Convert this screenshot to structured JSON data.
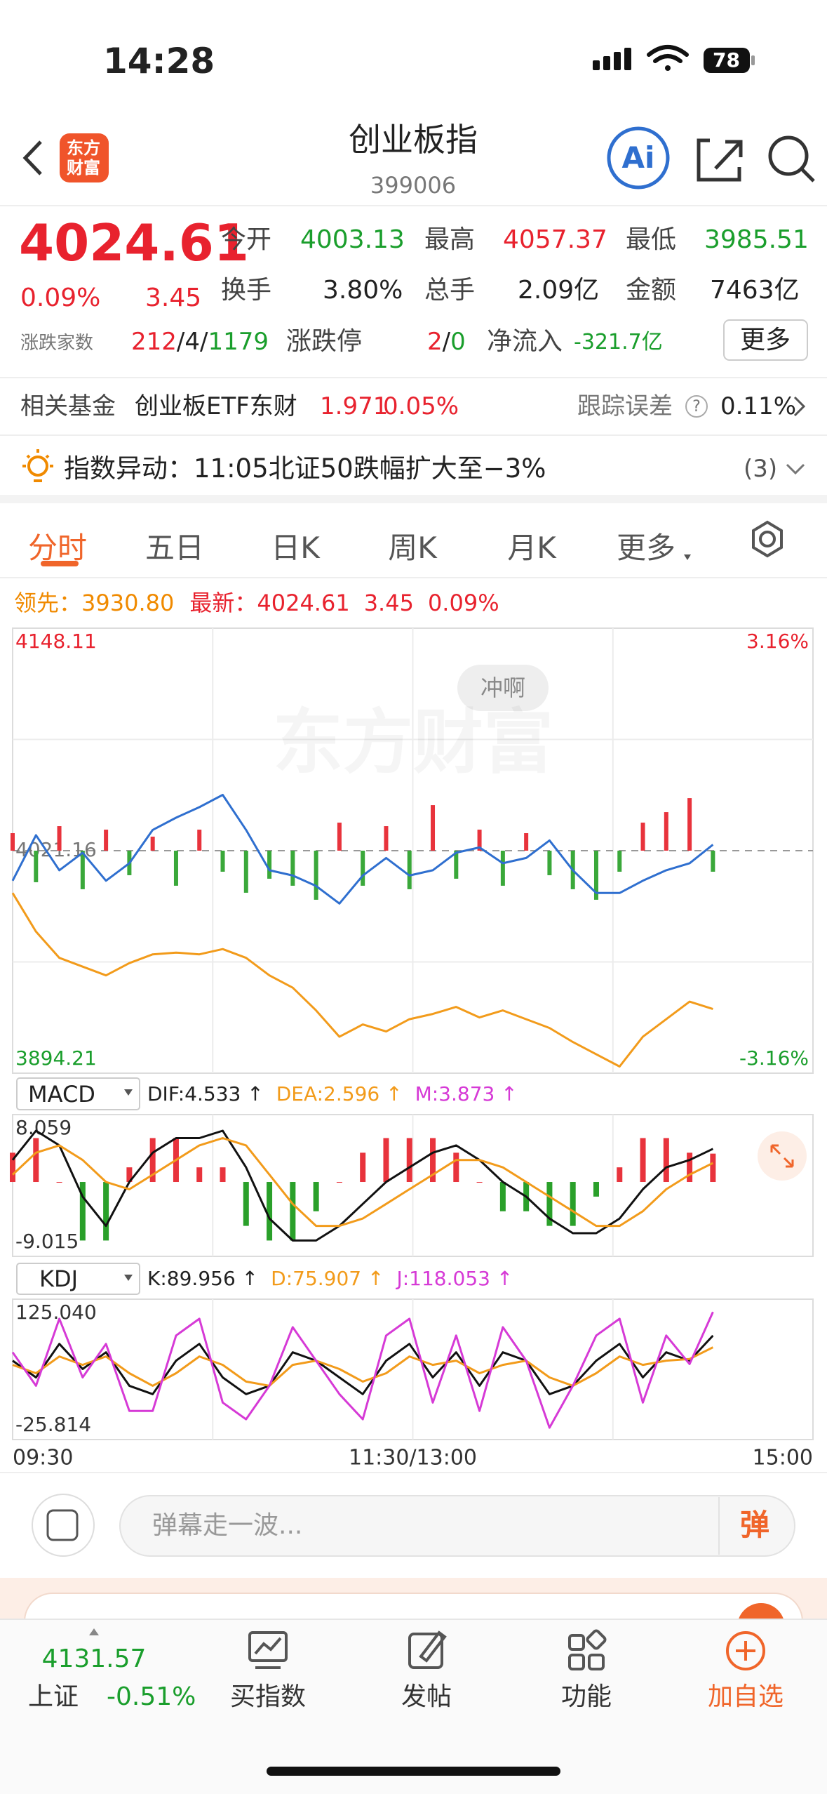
{
  "status_bar": {
    "time": "14:28",
    "battery": "78"
  },
  "header": {
    "title": "创业板指",
    "code": "399006",
    "logo_line1": "东方",
    "logo_line2": "财富",
    "ai": "Ai"
  },
  "quote": {
    "price": "4024.61",
    "change_pct": "0.09%",
    "change": "3.45",
    "stats": [
      {
        "label": "今开",
        "value": "4003.13"
      },
      {
        "label": "最高",
        "value": "4057.37"
      },
      {
        "label": "最低",
        "value": "3985.51"
      },
      {
        "label": "换手",
        "value": "3.80%"
      },
      {
        "label": "总手",
        "value": "2.09亿"
      },
      {
        "label": "金额",
        "value": "7463亿"
      }
    ],
    "breadth_label": "涨跌家数",
    "breadth": [
      "212",
      "/",
      "4",
      "/",
      "1179"
    ],
    "limit_label": "涨跌停",
    "limit": [
      "2",
      "/",
      "0"
    ],
    "netflow_label": "净流入",
    "netflow": "-321.7亿",
    "more": "更多"
  },
  "fund": {
    "label": "相关基金",
    "name": "创业板ETF东财",
    "price": "1.971",
    "change": "0.05%",
    "tracking_label": "跟踪误差",
    "help": "?",
    "tracking": "0.11%"
  },
  "alert": {
    "text": "指数异动：11:05北证50跌幅扩大至−3%",
    "count": "(3)"
  },
  "tabs": [
    "分时",
    "五日",
    "日K",
    "周K",
    "月K",
    "更多"
  ],
  "intraday": {
    "lead_label": "领先：",
    "lead": "3930.80",
    "latest_label": "最新：",
    "latest": "4024.61",
    "latest_change": "3.45",
    "latest_pct": "0.09%",
    "watermark": "东方财富",
    "bubble": "冲啊",
    "chart": {
      "type": "line",
      "x": [
        0,
        7,
        14,
        21,
        28,
        35,
        42,
        49,
        56,
        63,
        70,
        77,
        84,
        91,
        98,
        105,
        112,
        119,
        126,
        133,
        140,
        147,
        154,
        161,
        168,
        175,
        182,
        189,
        196,
        203,
        210
      ],
      "xlim": [
        0,
        240
      ],
      "xticks": [
        {
          "value": 0,
          "label": "09:30"
        },
        {
          "value": 120,
          "label": "11:30/13:00"
        },
        {
          "value": 240,
          "label": "15:00"
        }
      ],
      "ylim": [
        3894.21,
        4148.11
      ],
      "yticks": [
        3894.21,
        4021.16,
        4148.11
      ],
      "y2lim": [
        -3.16,
        3.16
      ],
      "y2ticks": [
        {
          "value": -3.16,
          "label": "-3.16%"
        },
        {
          "value": 3.16,
          "label": "3.16%"
        }
      ],
      "series": [
        {
          "color": "#2f6fcf",
          "values": [
            4004,
            4030,
            4010,
            4020,
            4004,
            4014,
            4033,
            4040,
            4046,
            4053,
            4033,
            4010,
            4007,
            4001,
            3991,
            4007,
            4017,
            4007,
            4010,
            4020,
            4023,
            4014,
            4017,
            4027,
            4010,
            3997,
            3997,
            4004,
            4010,
            4014,
            4024.61
          ]
        },
        {
          "color": "#f29b1b",
          "values": [
            3997,
            3975,
            3960,
            3955,
            3950,
            3957,
            3962,
            3963,
            3962,
            3965,
            3960,
            3950,
            3943,
            3930,
            3915,
            3922,
            3918,
            3925,
            3928,
            3932,
            3926,
            3930,
            3925,
            3920,
            3912,
            3905,
            3898,
            3915,
            3925,
            3935,
            3930.8
          ]
        }
      ],
      "bars": {
        "up_color": "#e8333c",
        "down_color": "#3aa83a",
        "values": [
          10,
          -18,
          14,
          -22,
          12,
          -14,
          8,
          -20,
          12,
          -12,
          -24,
          -16,
          -20,
          -28,
          16,
          -20,
          14,
          -22,
          26,
          -16,
          12,
          -20,
          10,
          -14,
          -22,
          -28,
          -12,
          16,
          22,
          30,
          -12
        ]
      }
    }
  },
  "macd": {
    "selector": "MACD",
    "indicators": [
      {
        "text": "DIF:4.533 ↑",
        "color": "#222222"
      },
      {
        "text": "DEA:2.596 ↑",
        "color": "#f29b1b"
      },
      {
        "text": "M:3.873 ↑",
        "color": "#d63ad6"
      }
    ],
    "chart": {
      "type": "line",
      "ylim": [
        -9.015,
        8.059
      ],
      "yticks": [
        -9.015,
        8.059
      ],
      "series": [
        {
          "color": "#111111",
          "values": [
            3,
            7,
            5,
            -2,
            -6,
            0,
            4,
            6,
            6,
            7,
            2,
            -5,
            -8,
            -8,
            -6,
            -3,
            0,
            2,
            4,
            5,
            3,
            0,
            -2,
            -5,
            -7,
            -7,
            -5,
            -1,
            2,
            3,
            4.533
          ]
        },
        {
          "color": "#f29b1b",
          "values": [
            1,
            4,
            5,
            3,
            0,
            -1,
            1,
            3,
            5,
            6,
            5,
            1,
            -3,
            -6,
            -6,
            -5,
            -3,
            -1,
            1,
            3,
            3,
            2,
            0,
            -2,
            -4,
            -6,
            -6,
            -4,
            -1,
            1,
            2.596
          ]
        }
      ],
      "bars": {
        "up_color": "#e8333c",
        "down_color": "#2aa02a",
        "values": [
          4,
          6,
          0,
          -8,
          -8,
          2,
          6,
          6,
          2,
          2,
          -6,
          -8,
          -8,
          -4,
          0,
          4,
          6,
          6,
          6,
          4,
          0,
          -4,
          -4,
          -6,
          -6,
          -2,
          2,
          6,
          6,
          4,
          3.873
        ]
      }
    }
  },
  "kdj": {
    "selector": "KDJ",
    "indicators": [
      {
        "text": "K:89.956 ↑",
        "color": "#222222"
      },
      {
        "text": "D:75.907 ↑",
        "color": "#f29b1b"
      },
      {
        "text": "J:118.053 ↑",
        "color": "#d63ad6"
      }
    ],
    "chart": {
      "type": "line",
      "ylim": [
        -25.814,
        125.04
      ],
      "yticks": [
        -25.814,
        {
          "value": 125.04,
          "label": "125.040"
        }
      ],
      "series": [
        {
          "color": "#111111",
          "values": [
            60,
            40,
            80,
            50,
            70,
            30,
            20,
            60,
            80,
            40,
            20,
            30,
            70,
            60,
            40,
            20,
            60,
            80,
            40,
            70,
            30,
            70,
            60,
            20,
            30,
            60,
            80,
            40,
            70,
            60,
            89.956
          ]
        },
        {
          "color": "#f29b1b",
          "values": [
            55,
            45,
            65,
            55,
            65,
            45,
            30,
            45,
            65,
            55,
            35,
            30,
            55,
            60,
            50,
            35,
            45,
            65,
            55,
            60,
            45,
            55,
            60,
            40,
            30,
            45,
            65,
            55,
            60,
            62,
            75.907
          ]
        },
        {
          "color": "#d63ad6",
          "values": [
            70,
            30,
            110,
            40,
            80,
            0,
            0,
            90,
            110,
            10,
            -10,
            30,
            100,
            60,
            20,
            -10,
            90,
            110,
            10,
            90,
            0,
            100,
            60,
            -20,
            30,
            90,
            110,
            10,
            90,
            56,
            118.053
          ]
        }
      ]
    }
  },
  "comment": {
    "placeholder": "弹幕走一波...",
    "button": "弹"
  },
  "bottom_nav": {
    "index_value": "4131.57",
    "index_name": "上证",
    "index_change": "-0.51%",
    "items": [
      "买指数",
      "发帖",
      "功能",
      "加自选"
    ]
  }
}
